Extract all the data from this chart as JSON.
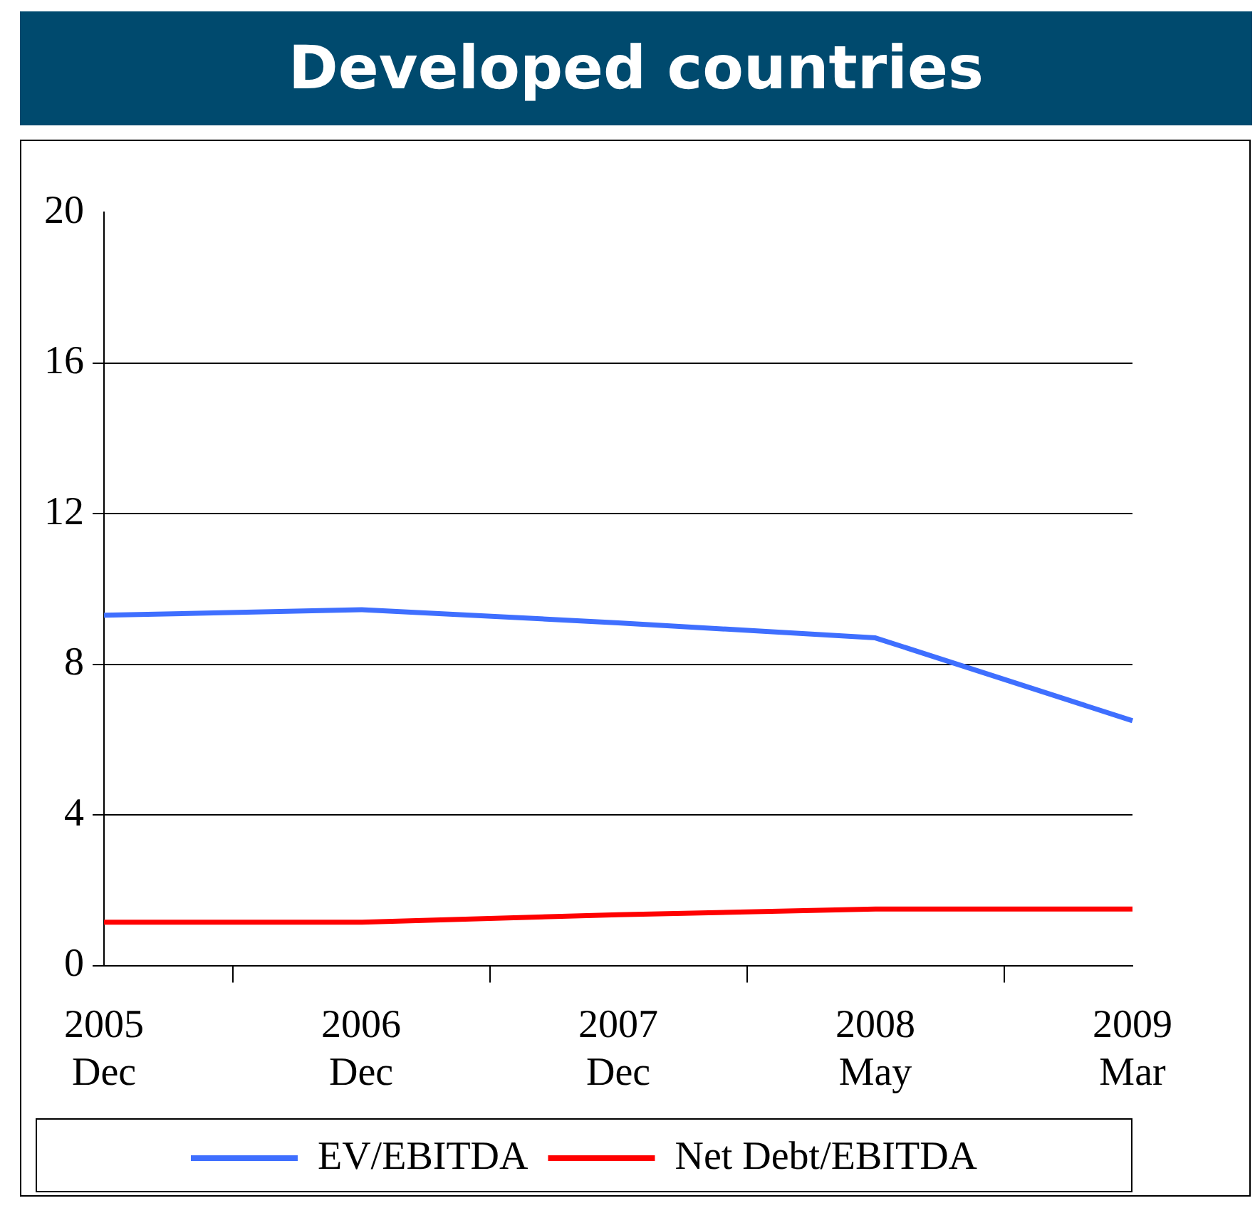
{
  "chart_data": {
    "type": "line",
    "title": "Developed countries",
    "categories": [
      "2005 Dec",
      "2006 Dec",
      "2007 Dec",
      "2008 May",
      "2009 Mar"
    ],
    "series": [
      {
        "name": "EV/EBITDA",
        "color": "#3f6fff",
        "values": [
          9.3,
          9.45,
          9.1,
          8.7,
          6.5
        ]
      },
      {
        "name": "Net Debt/EBITDA",
        "color": "#ff0000",
        "values": [
          1.15,
          1.15,
          1.35,
          1.5,
          1.5
        ]
      }
    ],
    "ylim": [
      0,
      20
    ],
    "yticks": [
      0,
      4,
      8,
      12,
      16,
      20
    ],
    "grid": "y",
    "legend": "bottom",
    "marker": "none",
    "line_style": "solid"
  }
}
